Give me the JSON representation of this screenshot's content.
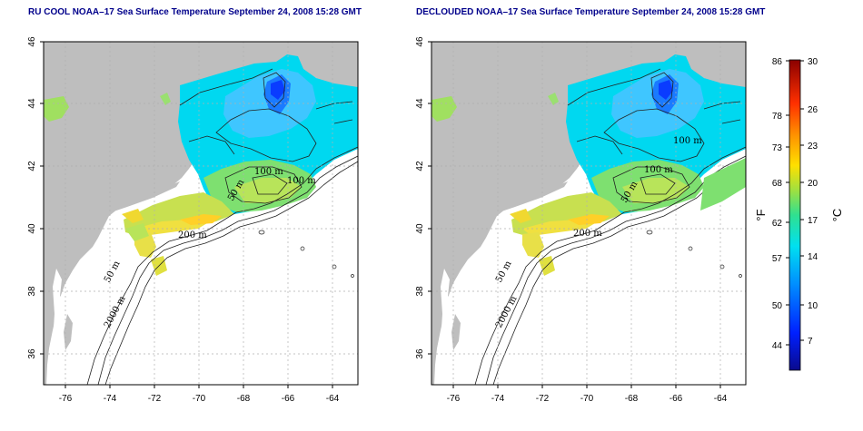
{
  "panels": [
    {
      "title": "RU COOL NOAA–17 Sea Surface Temperature September 24, 2008 15:28 GMT",
      "x_ticks": [
        "-76",
        "-74",
        "-72",
        "-70",
        "-68",
        "-66",
        "-64"
      ],
      "y_ticks": [
        "36",
        "38",
        "40",
        "42",
        "44",
        "46"
      ],
      "contour_labels": [
        "100 m",
        "100 m",
        "50 m",
        "200 m",
        "50 m",
        "2000 m"
      ]
    },
    {
      "title": "DECLOUDED NOAA–17 Sea Surface Temperature September 24, 2008 15:28 GMT",
      "x_ticks": [
        "-76",
        "-74",
        "-72",
        "-70",
        "-68",
        "-66",
        "-64"
      ],
      "y_ticks": [
        "36",
        "38",
        "40",
        "42",
        "44",
        "46"
      ],
      "contour_labels": [
        "100 m",
        "100 m",
        "50 m",
        "200 m",
        "50 m",
        "2000 m"
      ]
    }
  ],
  "colorbar": {
    "fahrenheit_label": "°F",
    "celsius_label": "°C",
    "fahrenheit_ticks": [
      "86",
      "78",
      "73",
      "68",
      "62",
      "57",
      "50",
      "44"
    ],
    "celsius_ticks": [
      "30",
      "26",
      "23",
      "20",
      "17",
      "14",
      "10",
      "7"
    ]
  },
  "colors": {
    "land": "#bebebe",
    "ocean": "#ffffff",
    "title": "#00008b",
    "grid": "#b0b0b0"
  }
}
